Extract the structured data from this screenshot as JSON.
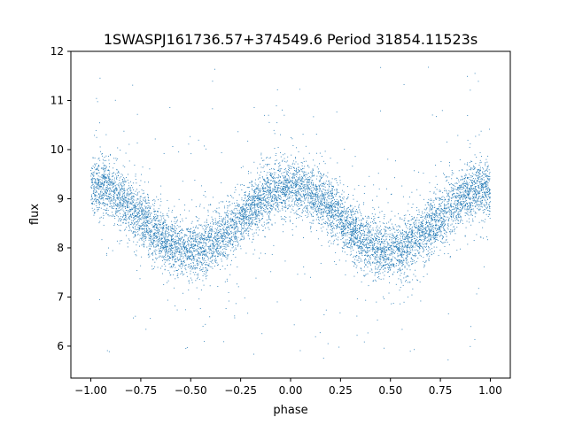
{
  "chart_data": {
    "type": "scatter",
    "title": "1SWASPJ161736.57+374549.6 Period 31854.11523s",
    "xlabel": "phase",
    "ylabel": "flux",
    "xlim": [
      -1.1,
      1.1
    ],
    "ylim": [
      5.35,
      12.0
    ],
    "xticks": [
      -1.0,
      -0.75,
      -0.5,
      -0.25,
      0.0,
      0.25,
      0.5,
      0.75,
      1.0
    ],
    "xtick_labels": [
      "−1.00",
      "−0.75",
      "−0.50",
      "−0.25",
      "0.00",
      "0.25",
      "0.50",
      "0.75",
      "1.00"
    ],
    "yticks": [
      6,
      7,
      8,
      9,
      10,
      11,
      12
    ],
    "ytick_labels": [
      "6",
      "7",
      "8",
      "9",
      "10",
      "11",
      "12"
    ],
    "grid": false,
    "marker_color": "#1f77b4",
    "model": {
      "description_points_phase": [
        -1.0,
        -0.5,
        0.0,
        0.5,
        1.0
      ],
      "flux_at_points": [
        9.2,
        7.95,
        9.25,
        7.95,
        9.2
      ],
      "mean_flux": 8.6,
      "amplitude": 0.65,
      "scatter_sigma": 0.28,
      "n_points": 9000
    }
  }
}
